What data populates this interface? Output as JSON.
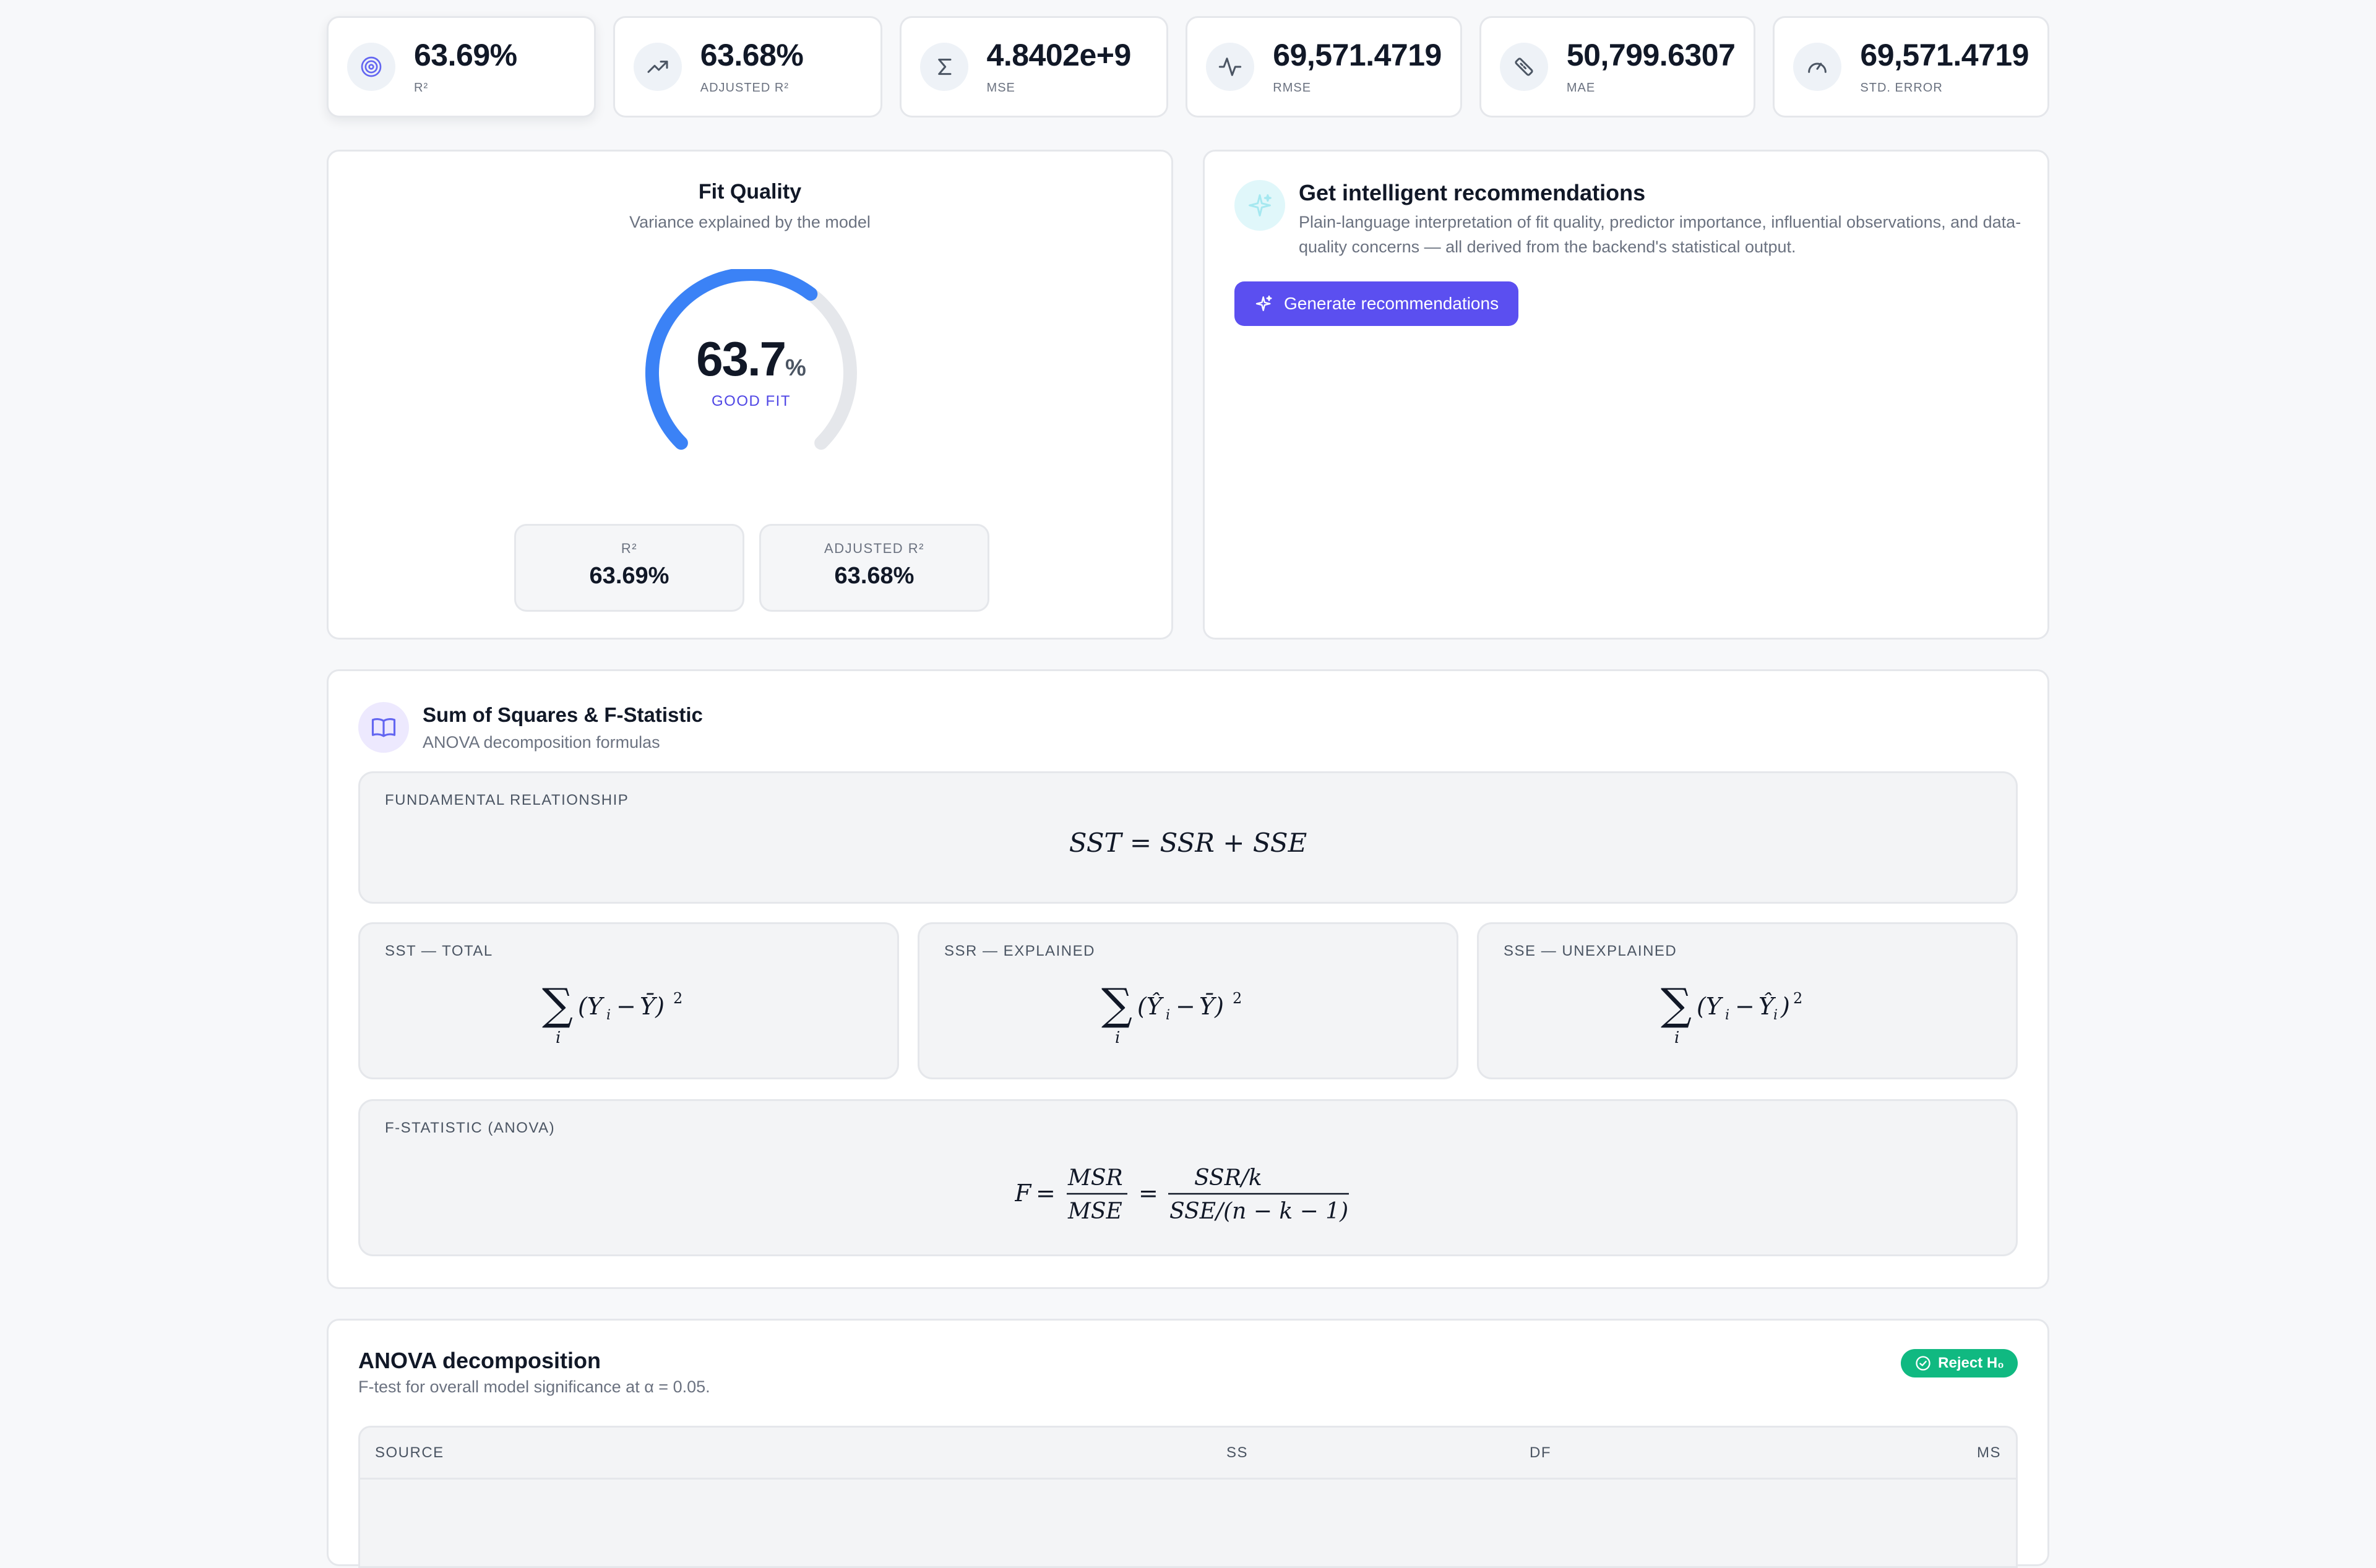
{
  "metrics": [
    {
      "icon": "target-icon",
      "value": "63.69%",
      "label": "R²"
    },
    {
      "icon": "trending-up-icon",
      "value": "63.68%",
      "label": "ADJUSTED R²"
    },
    {
      "icon": "sigma-icon",
      "value": "4.8402e+9",
      "label": "MSE"
    },
    {
      "icon": "activity-icon",
      "value": "69,571.4719",
      "label": "RMSE"
    },
    {
      "icon": "ruler-icon",
      "value": "50,799.6307",
      "label": "MAE"
    },
    {
      "icon": "gauge-icon",
      "value": "69,571.4719",
      "label": "STD. ERROR"
    }
  ],
  "fit_quality": {
    "title": "Fit Quality",
    "subtitle": "Variance explained by the model",
    "gauge_value": "63.7",
    "gauge_unit": "%",
    "gauge_fraction": 0.637,
    "gauge_tag": "GOOD FIT",
    "r2_label": "R²",
    "r2_value": "63.69%",
    "adj_r2_label": "ADJUSTED R²",
    "adj_r2_value": "63.68%"
  },
  "recommendations": {
    "title": "Get intelligent recommendations",
    "description": "Plain-language interpretation of fit quality, predictor importance, influential observations, and data-quality concerns — all derived from the backend's statistical output.",
    "button_label": "Generate recommendations"
  },
  "sum_of_squares": {
    "title": "Sum of Squares & F-Statistic",
    "subtitle": "ANOVA decomposition formulas",
    "fundamental_label": "FUNDAMENTAL RELATIONSHIP",
    "fundamental_formula": "SST = SSR + SSE",
    "sst_label": "SST — TOTAL",
    "ssr_label": "SSR — EXPLAINED",
    "sse_label": "SSE — UNEXPLAINED",
    "f_label": "F-STATISTIC (ANOVA)"
  },
  "anova": {
    "title": "ANOVA decomposition",
    "subtitle": "F-test for overall model significance at α = 0.05.",
    "badge": "Reject H₀",
    "columns": [
      "SOURCE",
      "SS",
      "DF",
      "MS"
    ]
  },
  "colors": {
    "accent": "#5b4ff0",
    "gauge": "#3b82f6",
    "gauge_track": "#e5e7eb",
    "success": "#10b981"
  }
}
